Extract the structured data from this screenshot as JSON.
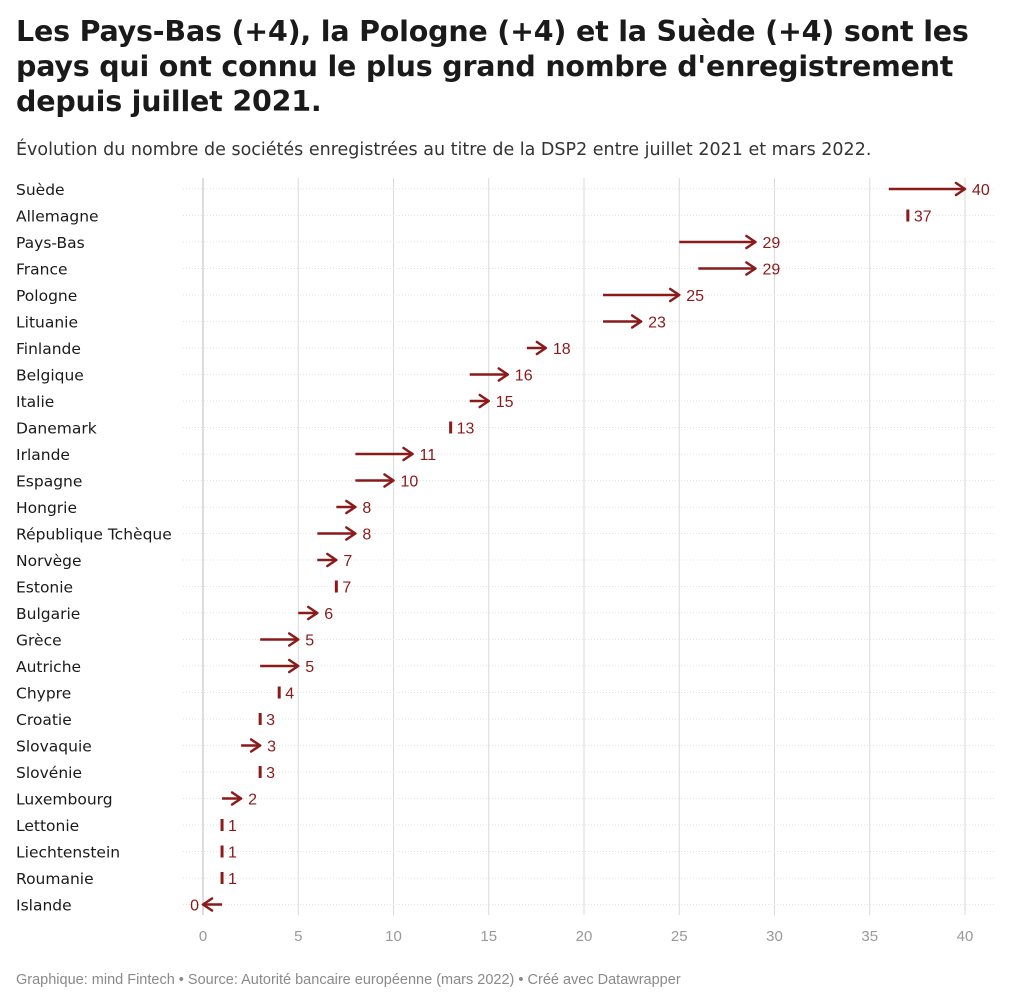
{
  "title": "Les Pays-Bas (+4), la Pologne (+4) et la Suède (+4) sont les pays qui ont connu le plus grand nombre d'enregistrement depuis juillet 2021.",
  "subtitle": "Évolution du nombre de sociétés enregistrées au titre de la DSP2 entre juillet 2021 et mars 2022.",
  "footer": {
    "graphique": "Graphique: mind Fintech",
    "source": "Source: Autorité bancaire européenne (mars 2022)",
    "created": "Créé avec Datawrapper",
    "separator": " • "
  },
  "colors": {
    "accent": "#8b1a1a",
    "grid": "#d9d9d9",
    "axis": "#bbbbbb",
    "tick_label": "#999999"
  },
  "chart_data": {
    "type": "arrow",
    "xlim": [
      0,
      40
    ],
    "xticks": [
      0,
      5,
      10,
      15,
      20,
      25,
      30,
      35,
      40
    ],
    "categories": [
      "Suède",
      "Allemagne",
      "Pays-Bas",
      "France",
      "Pologne",
      "Lituanie",
      "Finlande",
      "Belgique",
      "Italie",
      "Danemark",
      "Irlande",
      "Espagne",
      "Hongrie",
      "République Tchèque",
      "Norvège",
      "Estonie",
      "Bulgarie",
      "Grèce",
      "Autriche",
      "Chypre",
      "Croatie",
      "Slovaquie",
      "Slovénie",
      "Luxembourg",
      "Lettonie",
      "Liechtenstein",
      "Roumanie",
      "Islande"
    ],
    "series": [
      {
        "values": [
          36,
          37,
          25,
          26,
          21,
          21,
          17,
          14,
          14,
          13,
          8,
          8,
          7,
          6,
          6,
          7,
          5,
          3,
          3,
          4,
          3,
          2,
          3,
          1,
          1,
          1,
          1,
          1
        ]
      },
      {
        "values": [
          40,
          37,
          29,
          29,
          25,
          23,
          18,
          16,
          15,
          13,
          11,
          10,
          8,
          8,
          7,
          7,
          6,
          5,
          5,
          4,
          3,
          3,
          3,
          2,
          1,
          1,
          1,
          0
        ]
      }
    ],
    "grid": true
  }
}
